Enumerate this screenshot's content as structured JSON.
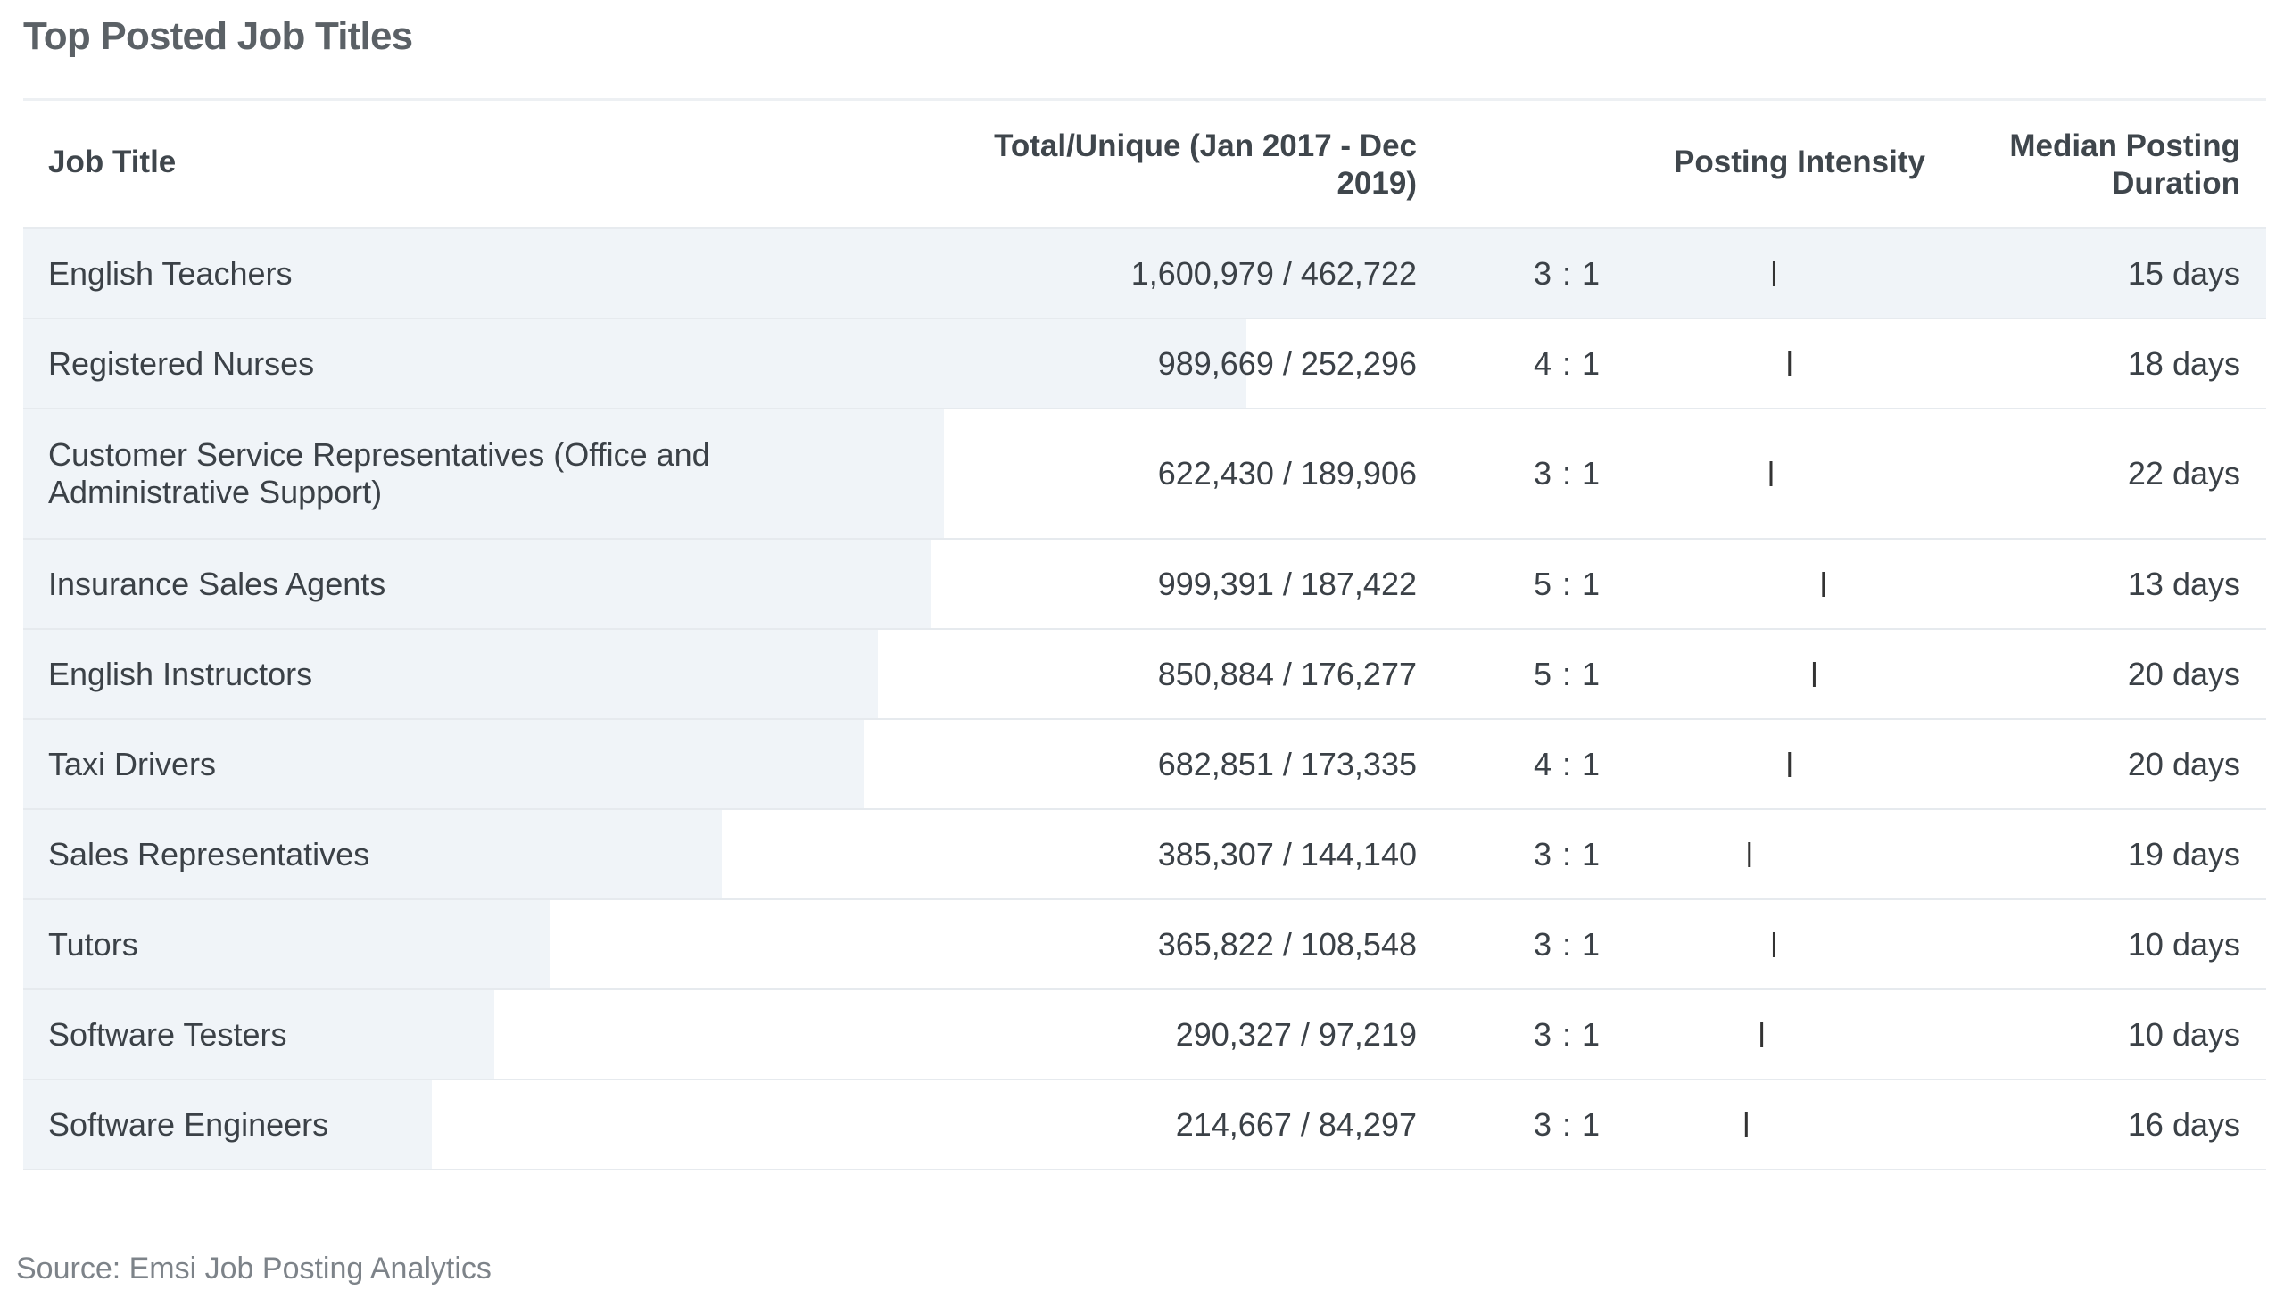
{
  "title": "Top Posted Job Titles",
  "source": "Source: Emsi Job Posting Analytics",
  "colors": {
    "row_bar": "#f0f4f8",
    "track_left": "#5b8fc1",
    "track_mid": "#f1b17a",
    "track_right": "#e4694a",
    "marker": "#333333"
  },
  "chart_data": {
    "type": "table",
    "columns": [
      "Job Title",
      "Total/Unique (Jan 2017 - Dec 2019)",
      "Posting Intensity",
      "Median Posting Duration"
    ],
    "header_lines": {
      "total": [
        "Total/Unique (Jan 2017 - Dec",
        "2019)"
      ],
      "duration": [
        "Median Posting",
        "Duration"
      ]
    },
    "rows": [
      {
        "title_lines": [
          "English Teachers"
        ],
        "total": "1,600,979",
        "unique": 462722,
        "unique_label": "462,722",
        "intensity": "3 : 1",
        "marker": 0.51,
        "duration": "15 days"
      },
      {
        "title_lines": [
          "Registered Nurses"
        ],
        "total": "989,669",
        "unique": 252296,
        "unique_label": "252,296",
        "intensity": "4 : 1",
        "marker": 0.56,
        "duration": "18 days"
      },
      {
        "title_lines": [
          "Customer Service Representatives (Office and",
          "Administrative Support)"
        ],
        "total": "622,430",
        "unique": 189906,
        "unique_label": "189,906",
        "intensity": "3 : 1",
        "marker": 0.5,
        "duration": "22 days"
      },
      {
        "title_lines": [
          "Insurance Sales Agents"
        ],
        "total": "999,391",
        "unique": 187422,
        "unique_label": "187,422",
        "intensity": "5 : 1",
        "marker": 0.67,
        "duration": "13 days"
      },
      {
        "title_lines": [
          "English Instructors"
        ],
        "total": "850,884",
        "unique": 176277,
        "unique_label": "176,277",
        "intensity": "5 : 1",
        "marker": 0.64,
        "duration": "20 days"
      },
      {
        "title_lines": [
          "Taxi Drivers"
        ],
        "total": "682,851",
        "unique": 173335,
        "unique_label": "173,335",
        "intensity": "4 : 1",
        "marker": 0.56,
        "duration": "20 days"
      },
      {
        "title_lines": [
          "Sales Representatives"
        ],
        "total": "385,307",
        "unique": 144140,
        "unique_label": "144,140",
        "intensity": "3 : 1",
        "marker": 0.43,
        "duration": "19 days"
      },
      {
        "title_lines": [
          "Tutors"
        ],
        "total": "365,822",
        "unique": 108548,
        "unique_label": "108,548",
        "intensity": "3 : 1",
        "marker": 0.51,
        "duration": "10 days"
      },
      {
        "title_lines": [
          "Software Testers"
        ],
        "total": "290,327",
        "unique": 97219,
        "unique_label": "97,219",
        "intensity": "3 : 1",
        "marker": 0.47,
        "duration": "10 days"
      },
      {
        "title_lines": [
          "Software Engineers"
        ],
        "total": "214,667",
        "unique": 84297,
        "unique_label": "84,297",
        "intensity": "3 : 1",
        "marker": 0.42,
        "duration": "16 days"
      }
    ]
  }
}
